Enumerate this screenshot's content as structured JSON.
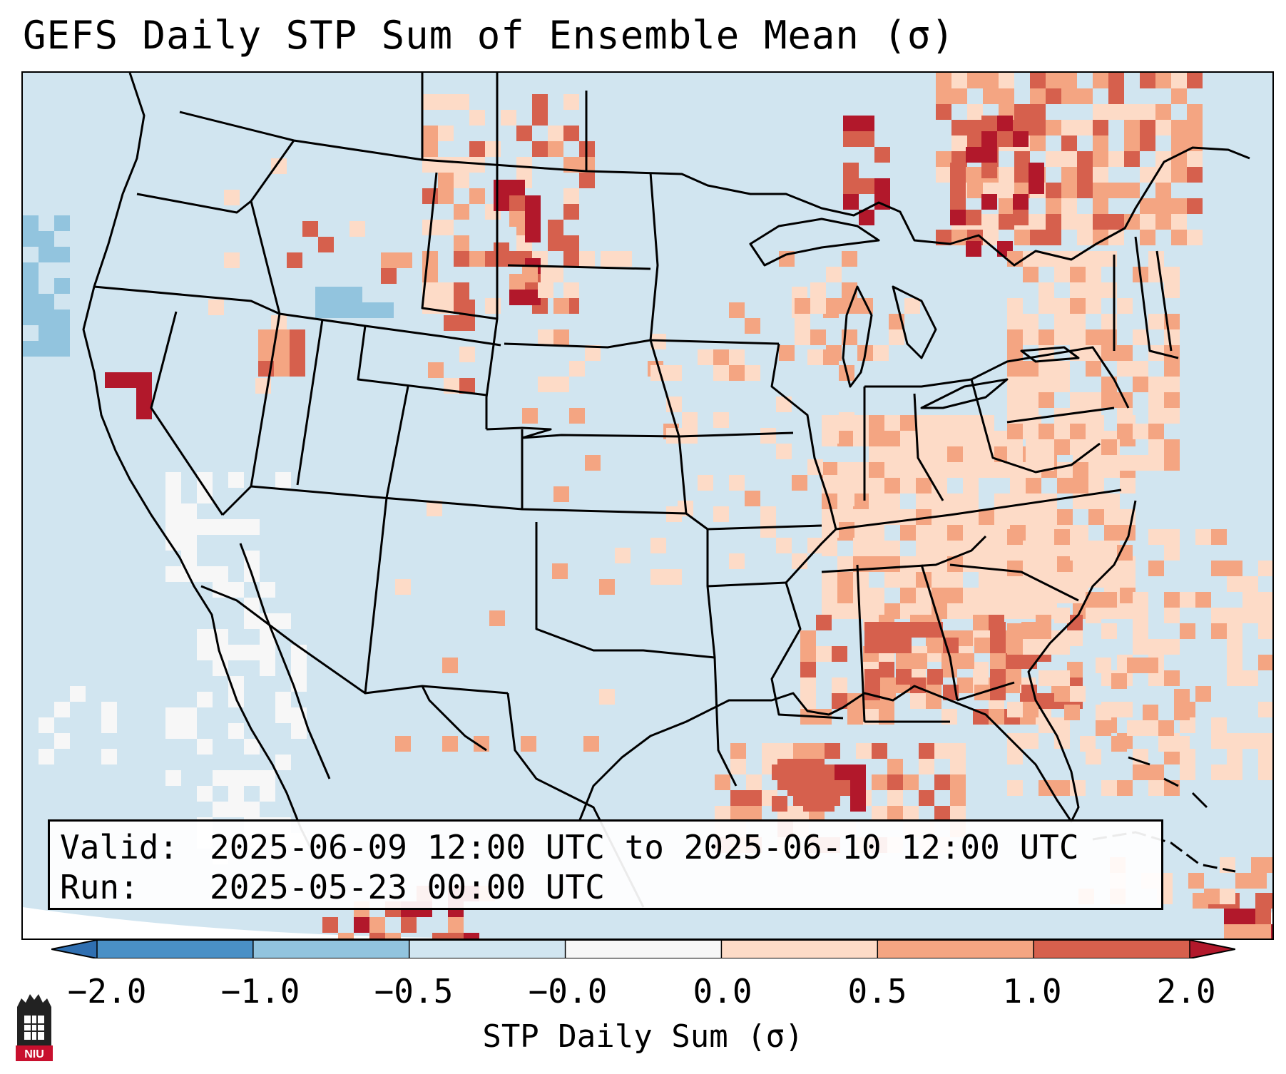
{
  "title": "GEFS Daily STP Sum of Ensemble Mean (σ)",
  "info": {
    "valid_label": "Valid:",
    "valid_value": "2025-06-09 12:00 UTC to 2025-06-10 12:00 UTC",
    "run_label": "Run:",
    "run_value": "2025-05-23 00:00 UTC"
  },
  "colorbar": {
    "label": "STP Daily Sum (σ)",
    "ticks": [
      "−2.0",
      "−1.0",
      "−0.5",
      "−0.0",
      "0.0",
      "0.5",
      "1.0",
      "2.0"
    ],
    "bins": [
      {
        "range": "< -2.0",
        "color": "#2f6fb1"
      },
      {
        "range": "-2.0 to -1.0",
        "color": "#4a90c6"
      },
      {
        "range": "-1.0 to -0.5",
        "color": "#92c4de"
      },
      {
        "range": "-0.5 to -0.0",
        "color": "#d1e5f0"
      },
      {
        "range": "-0.0 to 0.0",
        "color": "#f7f7f7"
      },
      {
        "range": "0.0 to 0.5",
        "color": "#fddbc7"
      },
      {
        "range": "0.5 to 1.0",
        "color": "#f4a582"
      },
      {
        "range": "1.0 to 2.0",
        "color": "#d6604d"
      },
      {
        "range": "> 2.0",
        "color": "#b2182b"
      }
    ]
  },
  "map": {
    "background_color": "#d1e5f0",
    "region": "Contiguous United States",
    "highlighted_regions": [
      {
        "name": "Southeast US",
        "level": "0.0 to 1.0"
      },
      {
        "name": "Gulf of Mexico coast",
        "level": "0.5 to 2.0"
      },
      {
        "name": "Northern Plains / Montana",
        "level": "0.5 to 2.0"
      },
      {
        "name": "Ontario / Quebec",
        "level": "0.5 to 2.0"
      },
      {
        "name": "Northern California",
        "level": "> 2.0"
      }
    ]
  },
  "logo": {
    "text": "NIU",
    "color": "#c8102e"
  }
}
